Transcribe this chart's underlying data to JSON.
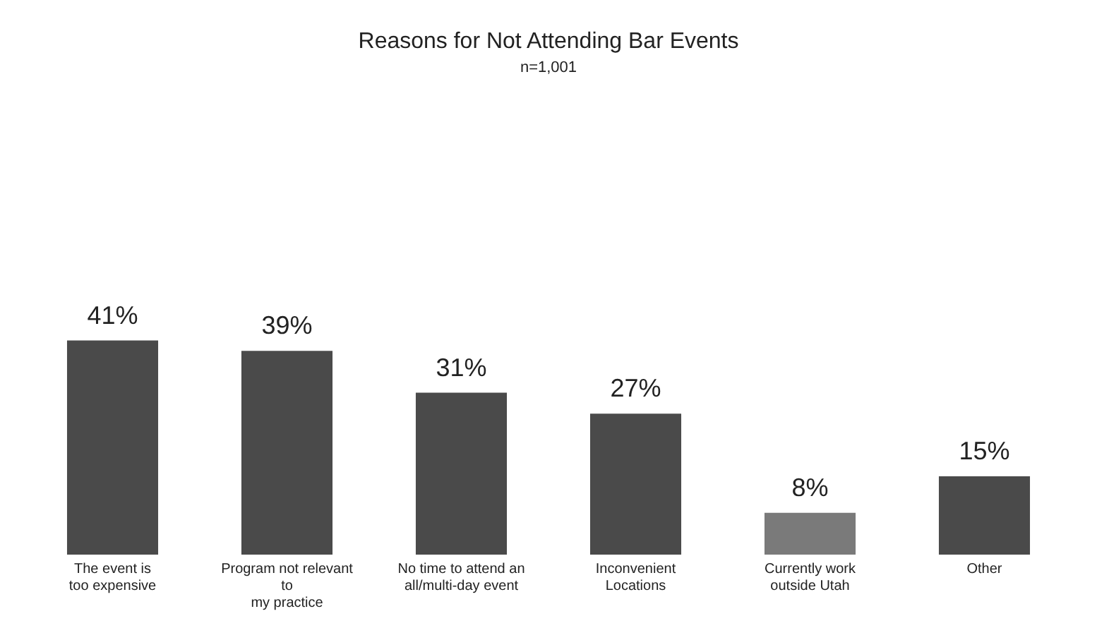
{
  "chart_data": {
    "type": "bar",
    "title": "Reasons for Not Attending Bar Events",
    "subtitle": "n=1,001",
    "categories": [
      "The event is\ntoo expensive",
      "Program not relevant\nto\nmy practice",
      "No time to attend an\nall/multi-day event",
      "Inconvenient\nLocations",
      "Currently work\noutside Utah",
      "Other"
    ],
    "values": [
      41,
      39,
      31,
      27,
      8,
      15
    ],
    "colors": [
      "#4a4a4a",
      "#4a4a4a",
      "#4a4a4a",
      "#4a4a4a",
      "#7a7a7a",
      "#4a4a4a"
    ],
    "value_labels": [
      "41%",
      "39%",
      "31%",
      "27%",
      "8%",
      "15%"
    ],
    "grid": false,
    "legend": false
  }
}
